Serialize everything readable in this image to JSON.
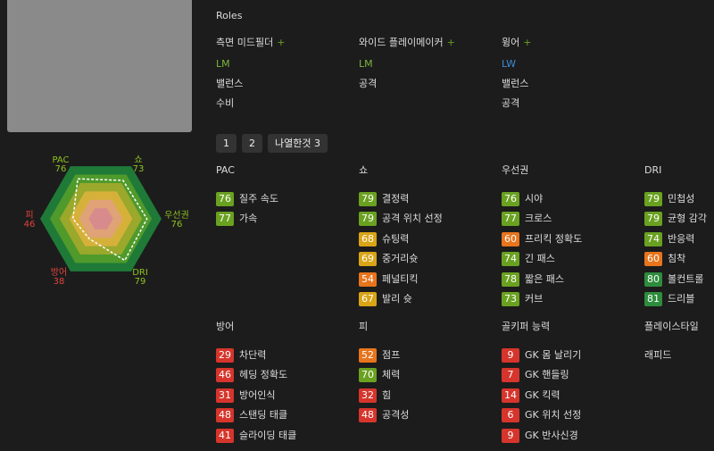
{
  "roles": {
    "title": "Roles",
    "plus": "+",
    "items": [
      {
        "name": "측면 미드필더",
        "position": "LM",
        "position_color": "#7bb63a",
        "tags": [
          "밸런스",
          "수비"
        ]
      },
      {
        "name": "와이드 플레이메이커",
        "position": "LM",
        "position_color": "#7bb63a",
        "tags": [
          "공격"
        ]
      },
      {
        "name": "윙어",
        "position": "LW",
        "position_color": "#3d8bd9",
        "tags": [
          "밸런스",
          "공격"
        ]
      }
    ]
  },
  "pagination": [
    "1",
    "2",
    "나열한것 3"
  ],
  "radar": {
    "rlim": [
      0,
      100
    ],
    "axes": [
      {
        "label": "PAC",
        "value": 76
      },
      {
        "label": "쇼",
        "value": 73
      },
      {
        "label": "우선권",
        "value": 76
      },
      {
        "label": "DRI",
        "value": 79
      },
      {
        "label": "방어",
        "value": 38
      },
      {
        "label": "피",
        "value": 46
      }
    ]
  },
  "stat_groups": [
    {
      "title": "PAC",
      "stats": [
        {
          "value": 76,
          "label": "질주 속도"
        },
        {
          "value": 77,
          "label": "가속"
        }
      ]
    },
    {
      "title": "쇼",
      "stats": [
        {
          "value": 79,
          "label": "결정력"
        },
        {
          "value": 79,
          "label": "공격 위치 선정"
        },
        {
          "value": 68,
          "label": "슈팅력"
        },
        {
          "value": 69,
          "label": "중거리슛"
        },
        {
          "value": 54,
          "label": "페널티킥"
        },
        {
          "value": 67,
          "label": "발리 슛"
        }
      ]
    },
    {
      "title": "우선권",
      "stats": [
        {
          "value": 76,
          "label": "시야"
        },
        {
          "value": 77,
          "label": "크로스"
        },
        {
          "value": 60,
          "label": "프리킥 정확도"
        },
        {
          "value": 74,
          "label": "긴 패스"
        },
        {
          "value": 78,
          "label": "짧은 패스"
        },
        {
          "value": 73,
          "label": "커브"
        }
      ]
    },
    {
      "title": "DRI",
      "stats": [
        {
          "value": 79,
          "label": "민첩성"
        },
        {
          "value": 79,
          "label": "균형 감각"
        },
        {
          "value": 74,
          "label": "반응력"
        },
        {
          "value": 60,
          "label": "침착"
        },
        {
          "value": 80,
          "label": "볼컨트롤"
        },
        {
          "value": 81,
          "label": "드리블"
        }
      ]
    },
    {
      "title": "방어",
      "stats": [
        {
          "value": 29,
          "label": "차단력"
        },
        {
          "value": 46,
          "label": "헤딩 정확도"
        },
        {
          "value": 31,
          "label": "방어인식"
        },
        {
          "value": 48,
          "label": "스탠딩 태클"
        },
        {
          "value": 41,
          "label": "슬라이딩 태클"
        }
      ]
    },
    {
      "title": "피",
      "stats": [
        {
          "value": 52,
          "label": "점프"
        },
        {
          "value": 70,
          "label": "체력"
        },
        {
          "value": 32,
          "label": "힘"
        },
        {
          "value": 48,
          "label": "공격성"
        }
      ]
    },
    {
      "title": "골키퍼 능력",
      "stats": [
        {
          "value": 9,
          "label": "GK 몸 날리기"
        },
        {
          "value": 7,
          "label": "GK 핸들링"
        },
        {
          "value": 14,
          "label": "GK 킥력"
        },
        {
          "value": 6,
          "label": "GK 위치 선정"
        },
        {
          "value": 9,
          "label": "GK 반사신경"
        }
      ]
    }
  ],
  "playstyle": {
    "title": "플레이스타일",
    "items": [
      "래피드"
    ]
  }
}
